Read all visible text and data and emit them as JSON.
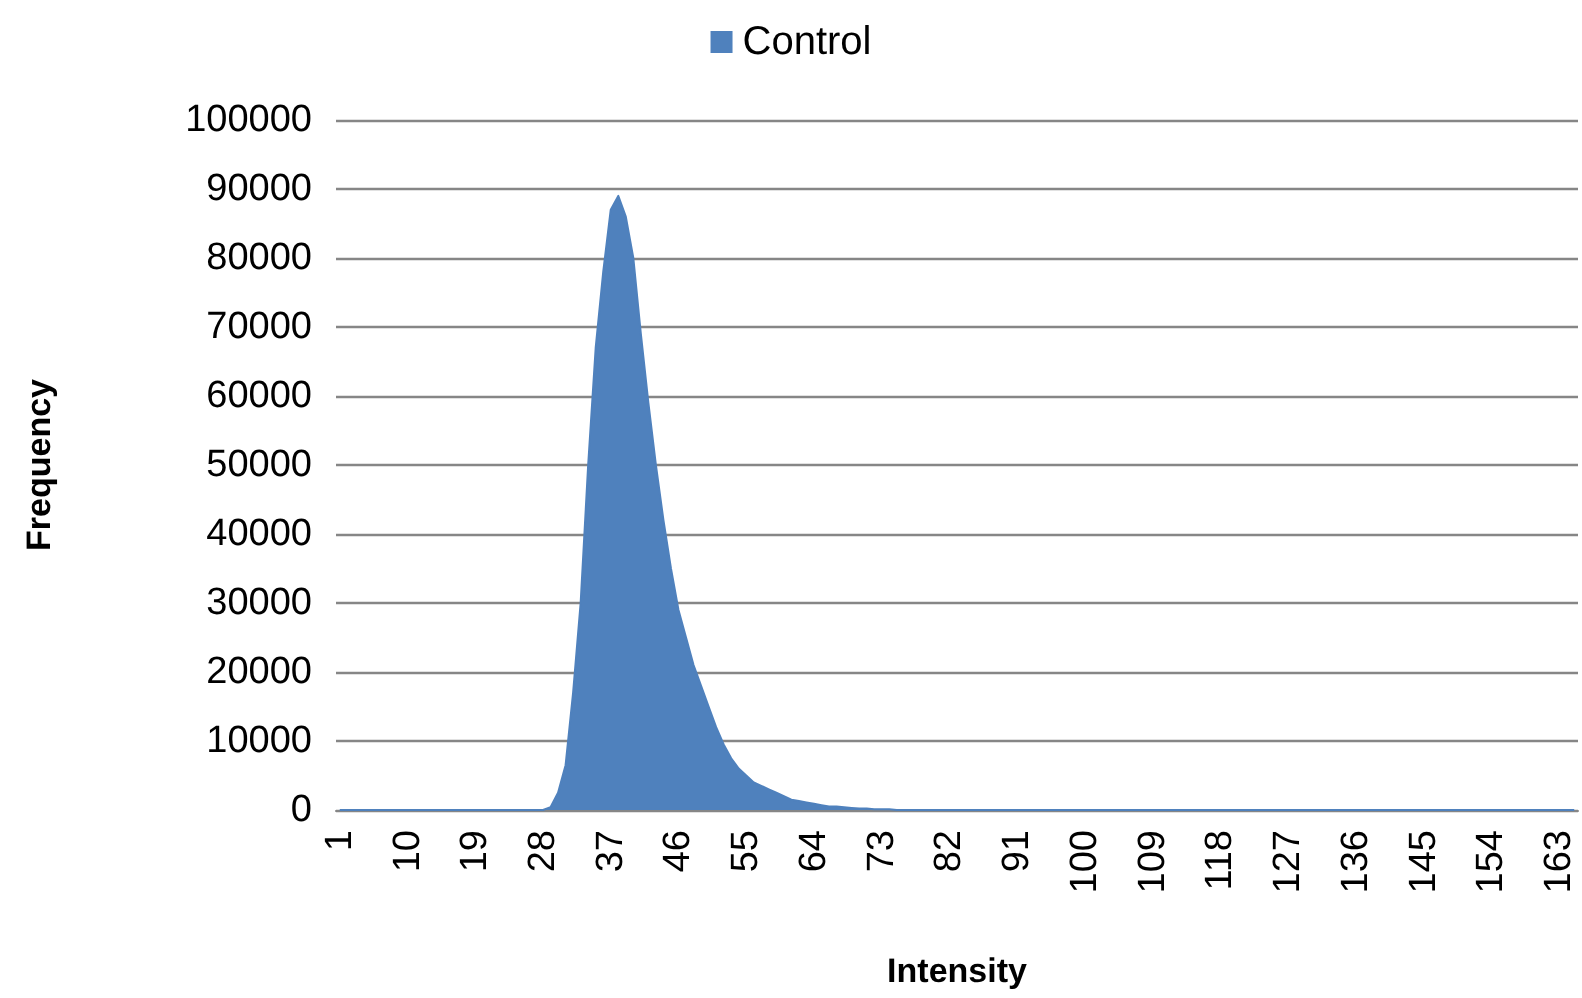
{
  "chart_data": {
    "type": "area",
    "xlabel": "Intensity",
    "ylabel": "Frequency",
    "categories": [
      "1",
      null,
      null,
      null,
      null,
      null,
      null,
      null,
      null,
      "10",
      null,
      null,
      null,
      null,
      null,
      null,
      null,
      null,
      "19",
      null,
      null,
      null,
      null,
      null,
      null,
      null,
      null,
      "28",
      null,
      null,
      null,
      null,
      null,
      null,
      null,
      null,
      "37",
      null,
      null,
      null,
      null,
      null,
      null,
      null,
      null,
      "46",
      null,
      null,
      null,
      null,
      null,
      null,
      null,
      null,
      "55",
      null,
      null,
      null,
      null,
      null,
      null,
      null,
      null,
      "64",
      null,
      null,
      null,
      null,
      null,
      null,
      null,
      null,
      "73",
      null,
      null,
      null,
      null,
      null,
      null,
      null,
      null,
      "82",
      null,
      null,
      null,
      null,
      null,
      null,
      null,
      null,
      "91",
      null,
      null,
      null,
      null,
      null,
      null,
      null,
      null,
      "100",
      null,
      null,
      null,
      null,
      null,
      null,
      null,
      null,
      "109",
      null,
      null,
      null,
      null,
      null,
      null,
      null,
      null,
      "118",
      null,
      null,
      null,
      null,
      null,
      null,
      null,
      null,
      "127",
      null,
      null,
      null,
      null,
      null,
      null,
      null,
      null,
      "136",
      null,
      null,
      null,
      null,
      null,
      null,
      null,
      null,
      "145",
      null,
      null,
      null,
      null,
      null,
      null,
      null,
      null,
      "154",
      null,
      null,
      null,
      null,
      null,
      null,
      null,
      null,
      "163",
      null,
      null
    ],
    "series": [
      {
        "name": "Control",
        "color": "#4f81bd",
        "values": [
          0,
          0,
          0,
          0,
          0,
          0,
          0,
          0,
          0,
          0,
          0,
          0,
          0,
          0,
          0,
          0,
          0,
          0,
          0,
          0,
          0,
          0,
          0,
          0,
          0,
          0,
          0,
          0,
          400,
          2500,
          6500,
          17000,
          30000,
          50000,
          67000,
          78000,
          87000,
          89000,
          86000,
          80000,
          69000,
          59000,
          50000,
          42000,
          35000,
          29000,
          25000,
          21000,
          18000,
          15000,
          12000,
          9500,
          7500,
          6000,
          5000,
          4000,
          3500,
          3000,
          2500,
          2000,
          1500,
          1300,
          1100,
          900,
          700,
          500,
          500,
          400,
          300,
          200,
          200,
          100,
          100,
          100,
          0,
          0,
          0,
          0,
          0,
          0,
          0,
          0,
          0,
          0,
          0,
          0,
          0,
          0,
          0,
          0,
          0,
          0,
          0,
          0,
          0,
          0,
          0,
          0,
          0,
          0,
          0,
          0,
          0,
          0,
          0,
          0,
          0,
          0,
          0,
          0,
          0,
          0,
          0,
          0,
          0,
          0,
          0,
          0,
          0,
          0,
          0,
          0,
          0,
          0,
          0,
          0,
          0,
          0,
          0,
          0,
          0,
          0,
          0,
          0,
          0,
          0,
          0,
          0,
          0,
          0,
          0,
          0,
          0,
          0,
          0,
          0,
          0,
          0,
          0,
          0,
          0,
          0,
          0,
          0,
          0,
          0,
          0,
          0,
          0,
          0,
          0,
          0,
          0,
          0,
          0
        ]
      }
    ],
    "ylim": [
      0,
      100000
    ],
    "yticks": [
      0,
      10000,
      20000,
      30000,
      40000,
      50000,
      60000,
      70000,
      80000,
      90000,
      100000
    ],
    "grid": "y",
    "legend": "top",
    "marker": "none"
  }
}
